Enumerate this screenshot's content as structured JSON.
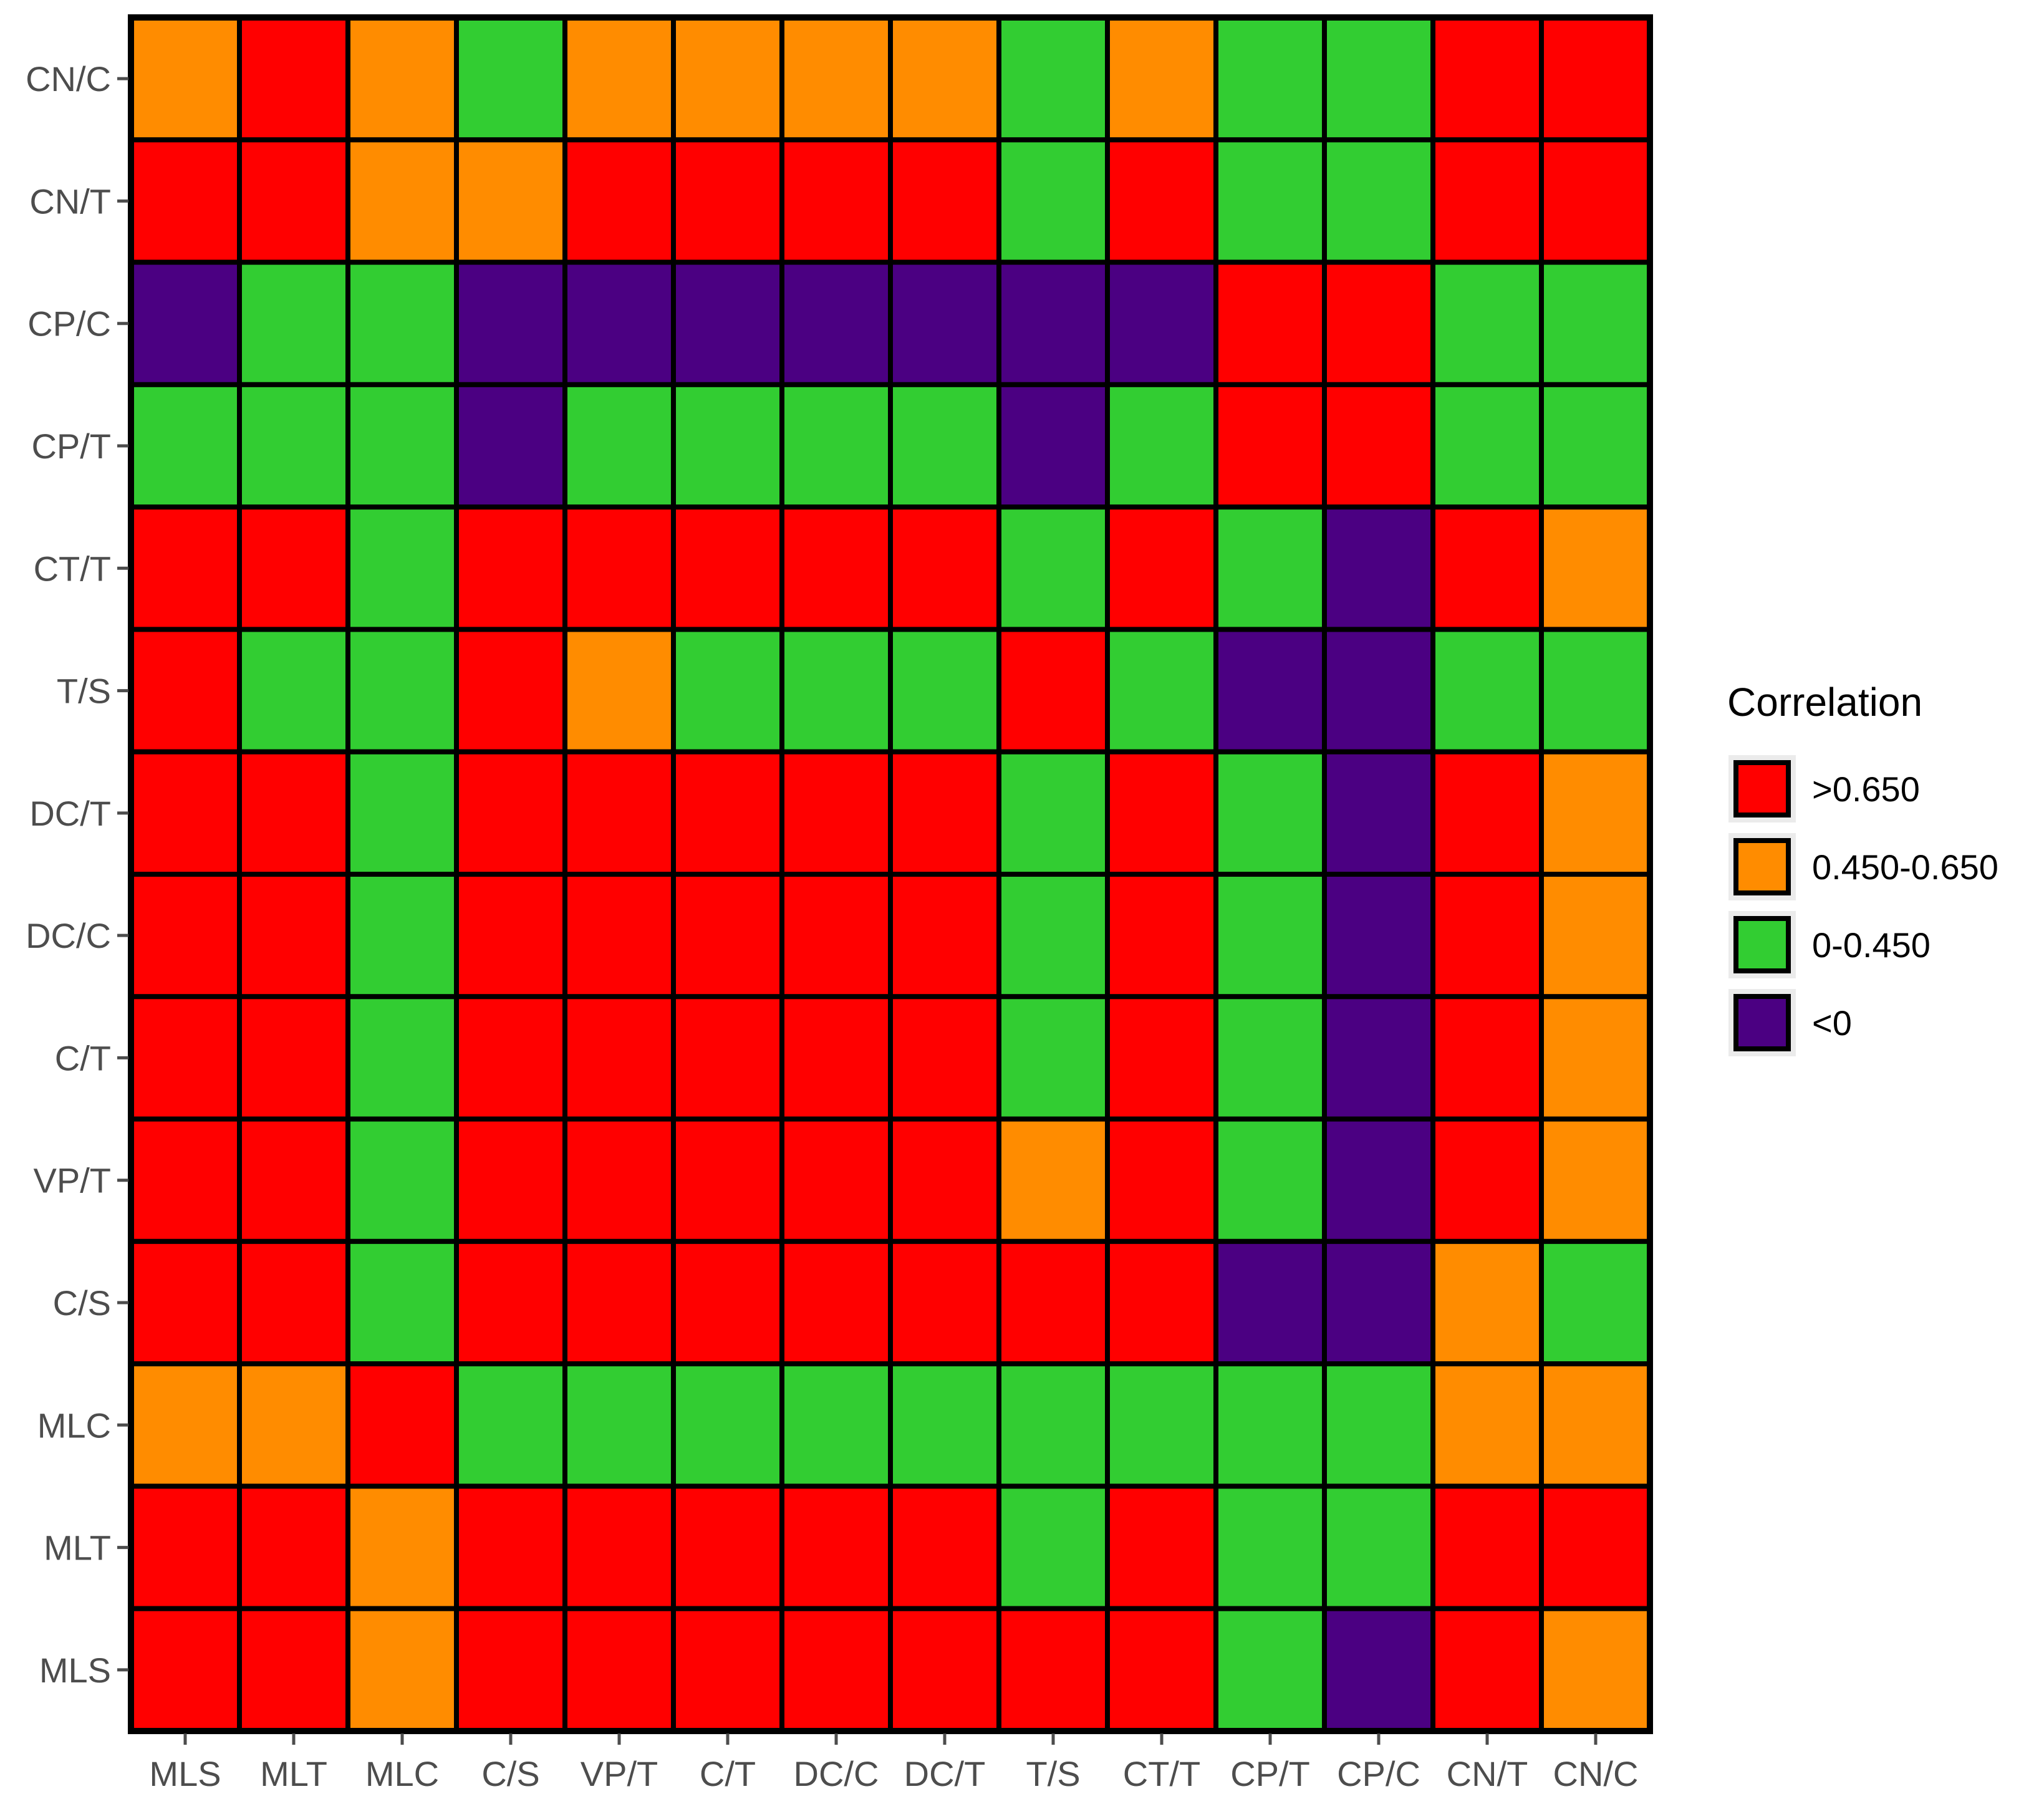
{
  "chart_data": {
    "type": "heatmap",
    "title": "",
    "xlabel": "",
    "ylabel": "",
    "x_categories": [
      "MLS",
      "MLT",
      "MLC",
      "C/S",
      "VP/T",
      "C/T",
      "DC/C",
      "DC/T",
      "T/S",
      "CT/T",
      "CP/T",
      "CP/C",
      "CN/T",
      "CN/C"
    ],
    "y_categories_top_to_bottom": [
      "CN/C",
      "CN/T",
      "CP/C",
      "CP/T",
      "CT/T",
      "T/S",
      "DC/T",
      "DC/C",
      "C/T",
      "VP/T",
      "C/S",
      "MLC",
      "MLT",
      "MLS"
    ],
    "legend": {
      "title": "Correlation",
      "position": "right",
      "classes": [
        {
          "key": "high",
          "label": ">0.650",
          "color": "#ff0000"
        },
        {
          "key": "mid",
          "label": "0.450-0.650",
          "color": "#ff8c00"
        },
        {
          "key": "low",
          "label": "0-0.450",
          "color": "#32cd32"
        },
        {
          "key": "neg",
          "label": "<0",
          "color": "#4b0082"
        }
      ]
    },
    "cells": [
      [
        "mid",
        "high",
        "mid",
        "low",
        "mid",
        "mid",
        "mid",
        "mid",
        "low",
        "mid",
        "low",
        "low",
        "high",
        "high"
      ],
      [
        "high",
        "high",
        "mid",
        "mid",
        "high",
        "high",
        "high",
        "high",
        "low",
        "high",
        "low",
        "low",
        "high",
        "high"
      ],
      [
        "neg",
        "low",
        "low",
        "neg",
        "neg",
        "neg",
        "neg",
        "neg",
        "neg",
        "neg",
        "high",
        "high",
        "low",
        "low"
      ],
      [
        "low",
        "low",
        "low",
        "neg",
        "low",
        "low",
        "low",
        "low",
        "neg",
        "low",
        "high",
        "high",
        "low",
        "low"
      ],
      [
        "high",
        "high",
        "low",
        "high",
        "high",
        "high",
        "high",
        "high",
        "low",
        "high",
        "low",
        "neg",
        "high",
        "mid"
      ],
      [
        "high",
        "low",
        "low",
        "high",
        "mid",
        "low",
        "low",
        "low",
        "high",
        "low",
        "neg",
        "neg",
        "low",
        "low"
      ],
      [
        "high",
        "high",
        "low",
        "high",
        "high",
        "high",
        "high",
        "high",
        "low",
        "high",
        "low",
        "neg",
        "high",
        "mid"
      ],
      [
        "high",
        "high",
        "low",
        "high",
        "high",
        "high",
        "high",
        "high",
        "low",
        "high",
        "low",
        "neg",
        "high",
        "mid"
      ],
      [
        "high",
        "high",
        "low",
        "high",
        "high",
        "high",
        "high",
        "high",
        "low",
        "high",
        "low",
        "neg",
        "high",
        "mid"
      ],
      [
        "high",
        "high",
        "low",
        "high",
        "high",
        "high",
        "high",
        "high",
        "mid",
        "high",
        "low",
        "neg",
        "high",
        "mid"
      ],
      [
        "high",
        "high",
        "low",
        "high",
        "high",
        "high",
        "high",
        "high",
        "high",
        "high",
        "neg",
        "neg",
        "mid",
        "low"
      ],
      [
        "mid",
        "mid",
        "high",
        "low",
        "low",
        "low",
        "low",
        "low",
        "low",
        "low",
        "low",
        "low",
        "mid",
        "mid"
      ],
      [
        "high",
        "high",
        "mid",
        "high",
        "high",
        "high",
        "high",
        "high",
        "low",
        "high",
        "low",
        "low",
        "high",
        "high"
      ],
      [
        "high",
        "high",
        "mid",
        "high",
        "high",
        "high",
        "high",
        "high",
        "high",
        "high",
        "low",
        "neg",
        "high",
        "mid"
      ]
    ],
    "grid": false
  }
}
